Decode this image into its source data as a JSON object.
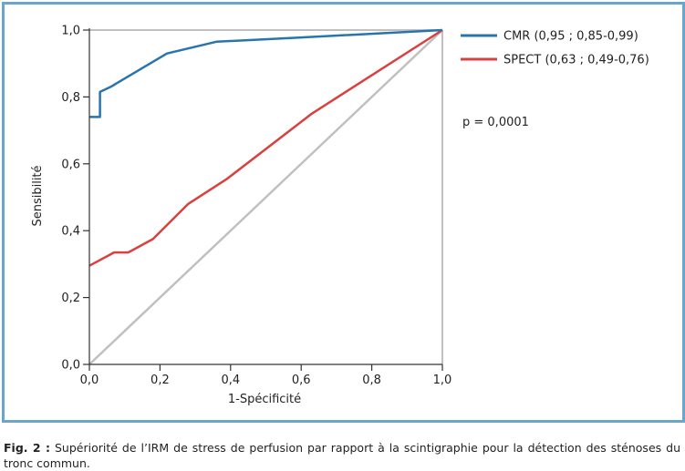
{
  "chart_data": {
    "type": "line",
    "title": "",
    "xlabel": "1-Spécificité",
    "ylabel": "Sensibilité",
    "xlim": [
      0,
      1
    ],
    "ylim": [
      0,
      1
    ],
    "x_ticks": [
      "0,0",
      "0,2",
      "0,4",
      "0,6",
      "0,8",
      "1,0"
    ],
    "y_ticks": [
      "0,0",
      "0,2",
      "0,4",
      "0,6",
      "0,8",
      "1,0"
    ],
    "grid": false,
    "legend_position": "top-right",
    "annotation": "p = 0,0001",
    "series": [
      {
        "name": "CMR (0,95 ; 0,85-0,99)",
        "color": "#2a74ad",
        "points": [
          [
            0,
            0.74
          ],
          [
            0.03,
            0.74
          ],
          [
            0.03,
            0.815
          ],
          [
            0.06,
            0.83
          ],
          [
            0.22,
            0.93
          ],
          [
            0.36,
            0.965
          ],
          [
            0.6,
            0.978
          ],
          [
            1.0,
            1.0
          ]
        ]
      },
      {
        "name": "SPECT (0,63 ; 0,49-0,76)",
        "color": "#d94040",
        "points": [
          [
            0,
            0.295
          ],
          [
            0.07,
            0.335
          ],
          [
            0.11,
            0.335
          ],
          [
            0.18,
            0.375
          ],
          [
            0.28,
            0.48
          ],
          [
            0.39,
            0.555
          ],
          [
            0.63,
            0.75
          ],
          [
            1.0,
            1.0
          ]
        ]
      },
      {
        "name": "",
        "color": "#c0c0c0",
        "points": [
          [
            0,
            0
          ],
          [
            1,
            1
          ]
        ]
      }
    ]
  },
  "caption": {
    "label": "Fig. 2 :",
    "text": "Supériorité de l’IRM de stress de perfusion par rapport à la scintigraphie pour la détection des sténoses du tronc commun."
  }
}
